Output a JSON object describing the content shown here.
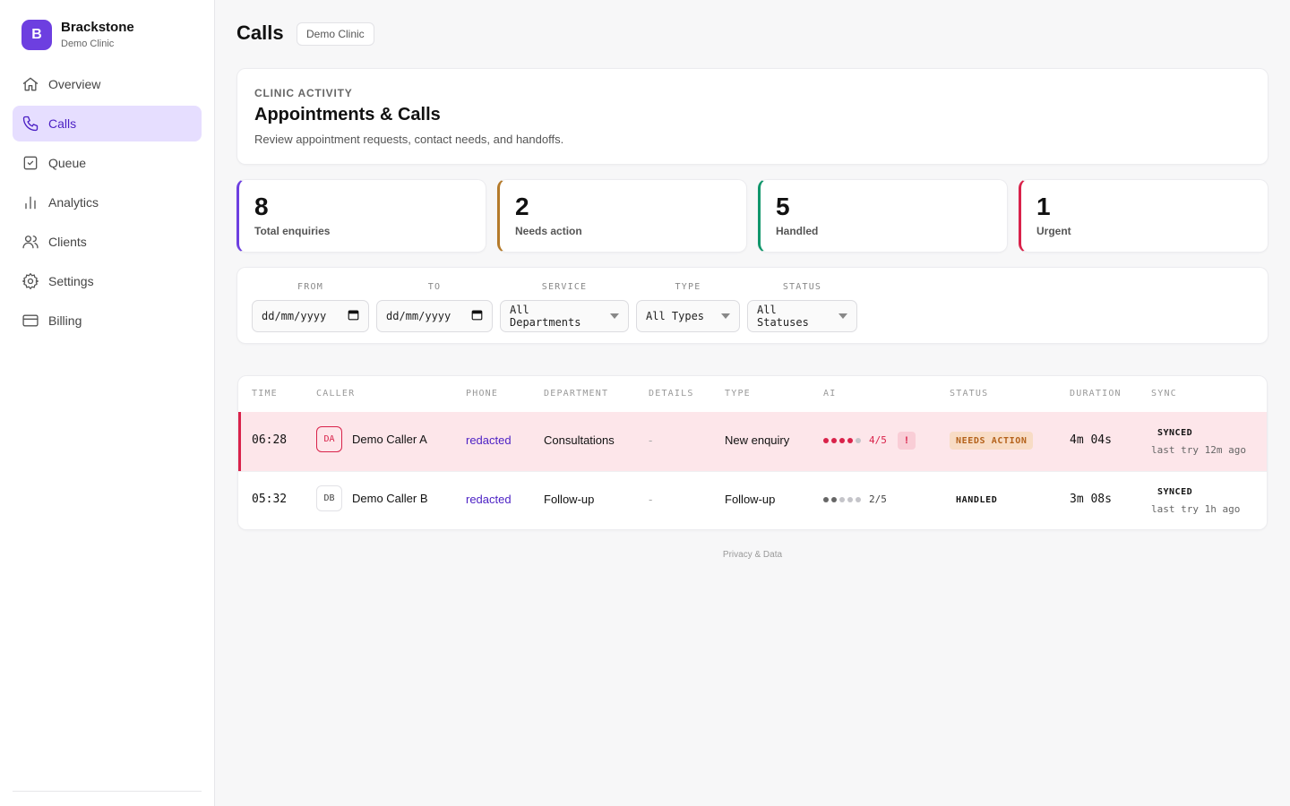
{
  "brand": {
    "logo_letter": "B",
    "name": "Brackstone",
    "sub": "Demo Clinic"
  },
  "nav": [
    {
      "label": "Overview",
      "icon": "home-icon",
      "active": false
    },
    {
      "label": "Calls",
      "icon": "phone-icon",
      "active": true
    },
    {
      "label": "Queue",
      "icon": "checkbox-icon",
      "active": false
    },
    {
      "label": "Analytics",
      "icon": "bar-chart-icon",
      "active": false
    },
    {
      "label": "Clients",
      "icon": "users-icon",
      "active": false
    },
    {
      "label": "Settings",
      "icon": "gear-icon",
      "active": false
    },
    {
      "label": "Billing",
      "icon": "credit-card-icon",
      "active": false
    }
  ],
  "header": {
    "title": "Calls",
    "chip": "Demo Clinic"
  },
  "hero": {
    "eyebrow": "CLINIC ACTIVITY",
    "title": "Appointments & Calls",
    "description": "Review appointment requests, contact needs, and handoffs."
  },
  "stats": [
    {
      "value": "8",
      "label": "Total enquiries",
      "color": "#6d3fe0"
    },
    {
      "value": "2",
      "label": "Needs action",
      "color": "#b47a2a"
    },
    {
      "value": "5",
      "label": "Handled",
      "color": "#10966b"
    },
    {
      "value": "1",
      "label": "Urgent",
      "color": "#d9224a"
    }
  ],
  "filters": {
    "from": {
      "label": "FROM",
      "placeholder": "dd/mm/yyyy"
    },
    "to": {
      "label": "TO",
      "placeholder": "dd/mm/yyyy"
    },
    "service": {
      "label": "SERVICE",
      "value": "All Departments"
    },
    "type": {
      "label": "TYPE",
      "value": "All Types"
    },
    "status": {
      "label": "STATUS",
      "value": "All Statuses"
    }
  },
  "table": {
    "columns": [
      "TIME",
      "CALLER",
      "PHONE",
      "DEPARTMENT",
      "DETAILS",
      "TYPE",
      "AI",
      "STATUS",
      "DURATION",
      "SYNC"
    ],
    "rows": [
      {
        "time": "06:28",
        "initials": "DA",
        "caller": "Demo Caller A",
        "phone": "redacted",
        "department": "Consultations",
        "details": "-",
        "type": "New enquiry",
        "ai_score": 4,
        "ai_max": 5,
        "ai_label": "4/5",
        "urgent_flag": "!",
        "status": "NEEDS ACTION",
        "duration": "4m 04s",
        "sync": "SYNCED",
        "sync_time": "last try 12m ago"
      },
      {
        "time": "05:32",
        "initials": "DB",
        "caller": "Demo Caller B",
        "phone": "redacted",
        "department": "Follow-up",
        "details": "-",
        "type": "Follow-up",
        "ai_score": 2,
        "ai_max": 5,
        "ai_label": "2/5",
        "status": "HANDLED",
        "duration": "3m 08s",
        "sync": "SYNCED",
        "sync_time": "last try 1h ago"
      }
    ]
  },
  "footer": {
    "link": "Privacy & Data"
  }
}
